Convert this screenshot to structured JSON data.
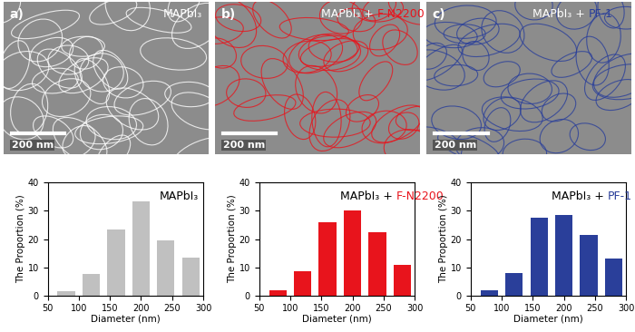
{
  "images": [
    {
      "label": "a)",
      "title": "MAPbI₃",
      "title_highlight": null,
      "color": "#ffffff",
      "scale_bar": "200 nm"
    },
    {
      "label": "b)",
      "title": "MAPbI₃ + F-N2200",
      "title_highlight": "F-N2200",
      "color": "#e8141c",
      "scale_bar": "200 nm"
    },
    {
      "label": "c)",
      "title": "MAPbI₃ + PF-1",
      "title_highlight": "PF-1",
      "color": "#2a3f9a",
      "scale_bar": "200 nm"
    }
  ],
  "chart_data": [
    {
      "type": "bar",
      "title": "MAPbI₃",
      "title_highlight": null,
      "x_label": "Diameter (nm)",
      "y_label": "The Proportion (%)",
      "x": [
        80,
        120,
        160,
        200,
        240,
        280
      ],
      "values": [
        1.5,
        7.5,
        23.5,
        33.5,
        19.5,
        13.5
      ],
      "color": "#c0c0c0",
      "xlim": [
        50,
        300
      ],
      "xticks": [
        50,
        100,
        150,
        200,
        250,
        300
      ],
      "ylim": [
        0,
        40
      ],
      "yticks": [
        0,
        10,
        20,
        30,
        40
      ]
    },
    {
      "type": "bar",
      "title": "MAPbI₃ + F-N2200",
      "title_highlight": "F-N2200",
      "x_label": "Diameter (nm)",
      "y_label": "The Proportion (%)",
      "x": [
        80,
        120,
        160,
        200,
        240,
        280
      ],
      "values": [
        2,
        8.5,
        26,
        30,
        22.5,
        11
      ],
      "color": "#e8141c",
      "xlim": [
        50,
        300
      ],
      "xticks": [
        50,
        100,
        150,
        200,
        250,
        300
      ],
      "ylim": [
        0,
        40
      ],
      "yticks": [
        0,
        10,
        20,
        30,
        40
      ]
    },
    {
      "type": "bar",
      "title": "MAPbI₃ + PF-1",
      "title_highlight": "PF-1",
      "x_label": "Diameter (nm)",
      "y_label": "The Proportion (%)",
      "x": [
        80,
        120,
        160,
        200,
        240,
        280
      ],
      "values": [
        2,
        8,
        27.5,
        28.5,
        21.5,
        13
      ],
      "color": "#2a3f9a",
      "xlim": [
        50,
        300
      ],
      "xticks": [
        50,
        100,
        150,
        200,
        250,
        300
      ],
      "ylim": [
        0,
        40
      ],
      "yticks": [
        0,
        10,
        20,
        30,
        40
      ]
    }
  ]
}
